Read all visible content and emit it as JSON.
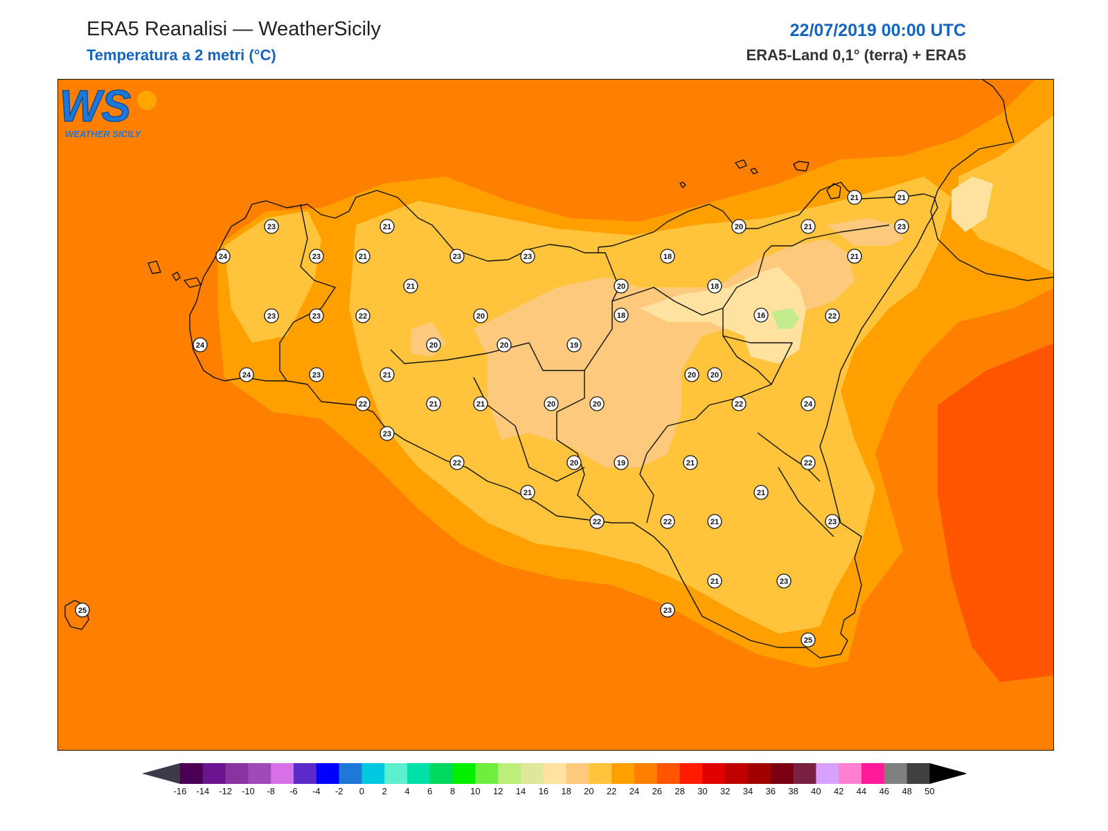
{
  "header": {
    "title": "ERA5 Reanalisi — WeatherSicily",
    "subtitle": "Temperatura a 2 metri (°C)",
    "datetime": "22/07/2019 00:00 UTC",
    "source": "ERA5-Land 0,1° (terra) + ERA5"
  },
  "logo": {
    "text": "WS",
    "caption": "WEATHER SICILY"
  },
  "colorbar": {
    "ticks": [
      "-16",
      "-14",
      "-12",
      "-10",
      "-8",
      "-6",
      "-4",
      "-2",
      "0",
      "2",
      "4",
      "6",
      "8",
      "10",
      "12",
      "14",
      "16",
      "18",
      "20",
      "22",
      "24",
      "26",
      "28",
      "30",
      "32",
      "34",
      "36",
      "38",
      "40",
      "42",
      "44",
      "46",
      "48",
      "50"
    ],
    "colors": [
      "#4a0055",
      "#6b1490",
      "#8833a0",
      "#a04ab8",
      "#d870e8",
      "#5a2bc8",
      "#0000ff",
      "#1e78d8",
      "#00c8e0",
      "#5cefd0",
      "#00e0a8",
      "#00d860",
      "#00f000",
      "#70ee40",
      "#bdee7a",
      "#dfe89a",
      "#ffe2a0",
      "#fdc97d",
      "#ffc33c",
      "#ff9f00",
      "#ff7f00",
      "#ff5500",
      "#ff1a00",
      "#e00000",
      "#c00000",
      "#a00000",
      "#7a0010",
      "#7a2040",
      "#d8a0ff",
      "#ff80d0",
      "#ff1a9a",
      "#808080",
      "#404040"
    ],
    "min_color": "#3a3a48",
    "max_color": "#000000"
  },
  "field_colors": {
    "sea_base": "#ff7f00",
    "t26": "#ff5500",
    "t24": "#ffa000",
    "t22": "#ffc33c",
    "t20": "#fdc97d",
    "t18": "#ffe2a0",
    "t16": "#c4ec8c"
  },
  "stations": [
    {
      "v": "23"
    },
    {
      "v": "21"
    },
    {
      "v": "24"
    },
    {
      "v": "23"
    },
    {
      "v": "21"
    },
    {
      "v": "23"
    },
    {
      "v": "23"
    },
    {
      "v": "21"
    },
    {
      "v": "23"
    },
    {
      "v": "23"
    },
    {
      "v": "22"
    },
    {
      "v": "20"
    },
    {
      "v": "24"
    },
    {
      "v": "20"
    },
    {
      "v": "20"
    },
    {
      "v": "19"
    },
    {
      "v": "24"
    },
    {
      "v": "23"
    },
    {
      "v": "21"
    },
    {
      "v": "22"
    },
    {
      "v": "21"
    },
    {
      "v": "21"
    },
    {
      "v": "20"
    },
    {
      "v": "20"
    },
    {
      "v": "23"
    },
    {
      "v": "22"
    },
    {
      "v": "21"
    },
    {
      "v": "22"
    },
    {
      "v": "20"
    },
    {
      "v": "19"
    },
    {
      "v": "21"
    },
    {
      "v": "22"
    },
    {
      "v": "22"
    },
    {
      "v": "21"
    },
    {
      "v": "21"
    },
    {
      "v": "23"
    },
    {
      "v": "21"
    },
    {
      "v": "23"
    },
    {
      "v": "23"
    },
    {
      "v": "25"
    },
    {
      "v": "25"
    },
    {
      "v": "20"
    },
    {
      "v": "18"
    },
    {
      "v": "20"
    },
    {
      "v": "18"
    },
    {
      "v": "18"
    },
    {
      "v": "16"
    },
    {
      "v": "22"
    },
    {
      "v": "20"
    },
    {
      "v": "22"
    },
    {
      "v": "24"
    },
    {
      "v": "22"
    },
    {
      "v": "20"
    },
    {
      "v": "21"
    },
    {
      "v": "21"
    },
    {
      "v": "21"
    },
    {
      "v": "21"
    },
    {
      "v": "23"
    },
    {
      "v": "21"
    }
  ]
}
